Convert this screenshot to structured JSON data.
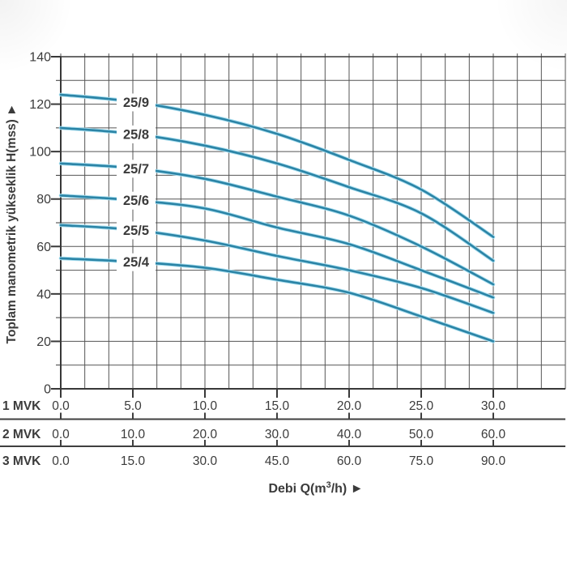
{
  "chart_data": {
    "type": "line",
    "title": "",
    "xlabel": {
      "pre": "Debi Q(m",
      "sup": "3",
      "post": "/h)",
      "arrow": "►"
    },
    "ylabel": {
      "text": "Toplam manometrik yükseklik H(mss)",
      "arrow": "►"
    },
    "y_axis": {
      "min": 0,
      "max": 140,
      "major_step": 20,
      "minor_step": 10,
      "ticks": [
        "0",
        "20",
        "40",
        "60",
        "80",
        "100",
        "120",
        "140"
      ]
    },
    "x_axis": {
      "unit": "m3/h",
      "labeled_max_row1": 30,
      "grid_max_row1": 35,
      "minor_step_row1": 1.6667,
      "rows": [
        {
          "label": "1 MVK",
          "ticks": [
            "0.0",
            "5.0",
            "10.0",
            "15.0",
            "20.0",
            "25.0",
            "30.0"
          ],
          "values": [
            0,
            5,
            10,
            15,
            20,
            25,
            30
          ]
        },
        {
          "label": "2 MVK",
          "ticks": [
            "0.0",
            "10.0",
            "20.0",
            "30.0",
            "40.0",
            "50.0",
            "60.0"
          ],
          "values": [
            0,
            10,
            20,
            30,
            40,
            50,
            60
          ]
        },
        {
          "label": "3 MVK",
          "ticks": [
            "0.0",
            "15.0",
            "30.0",
            "45.0",
            "60.0",
            "75.0",
            "90.0"
          ],
          "values": [
            0,
            15,
            30,
            45,
            60,
            75,
            90
          ]
        }
      ]
    },
    "series": [
      {
        "name": "25/9",
        "points": [
          [
            0,
            124
          ],
          [
            5,
            121
          ],
          [
            10,
            115.5
          ],
          [
            15,
            107.5
          ],
          [
            20,
            96.5
          ],
          [
            25,
            84
          ],
          [
            30,
            64
          ]
        ]
      },
      {
        "name": "25/8",
        "points": [
          [
            0,
            110
          ],
          [
            5,
            107.5
          ],
          [
            10,
            102.5
          ],
          [
            15,
            95
          ],
          [
            20,
            85
          ],
          [
            25,
            74
          ],
          [
            30,
            54
          ]
        ]
      },
      {
        "name": "25/7",
        "points": [
          [
            0,
            95
          ],
          [
            5,
            93
          ],
          [
            10,
            88.5
          ],
          [
            15,
            81
          ],
          [
            20,
            73
          ],
          [
            25,
            60
          ],
          [
            30,
            44
          ]
        ]
      },
      {
        "name": "25/6",
        "points": [
          [
            0,
            81.5
          ],
          [
            5,
            79.5
          ],
          [
            10,
            76
          ],
          [
            15,
            68
          ],
          [
            20,
            61
          ],
          [
            25,
            50
          ],
          [
            30,
            38.5
          ]
        ]
      },
      {
        "name": "25/5",
        "points": [
          [
            0,
            69
          ],
          [
            5,
            67
          ],
          [
            10,
            62.5
          ],
          [
            15,
            56
          ],
          [
            20,
            50
          ],
          [
            25,
            42.5
          ],
          [
            30,
            32
          ]
        ]
      },
      {
        "name": "25/4",
        "points": [
          [
            0,
            55
          ],
          [
            5,
            53.5
          ],
          [
            10,
            51
          ],
          [
            15,
            46
          ],
          [
            20,
            40.5
          ],
          [
            25,
            30.5
          ],
          [
            30,
            20
          ]
        ]
      }
    ],
    "legend": "curve labels placed on curves",
    "colors": {
      "curve": "#2b84a6",
      "curve_halo": "#aadff0",
      "grid": "#555555",
      "border": "#383838",
      "separator": "#3f3f3f",
      "text": "#3b3b3b"
    }
  }
}
